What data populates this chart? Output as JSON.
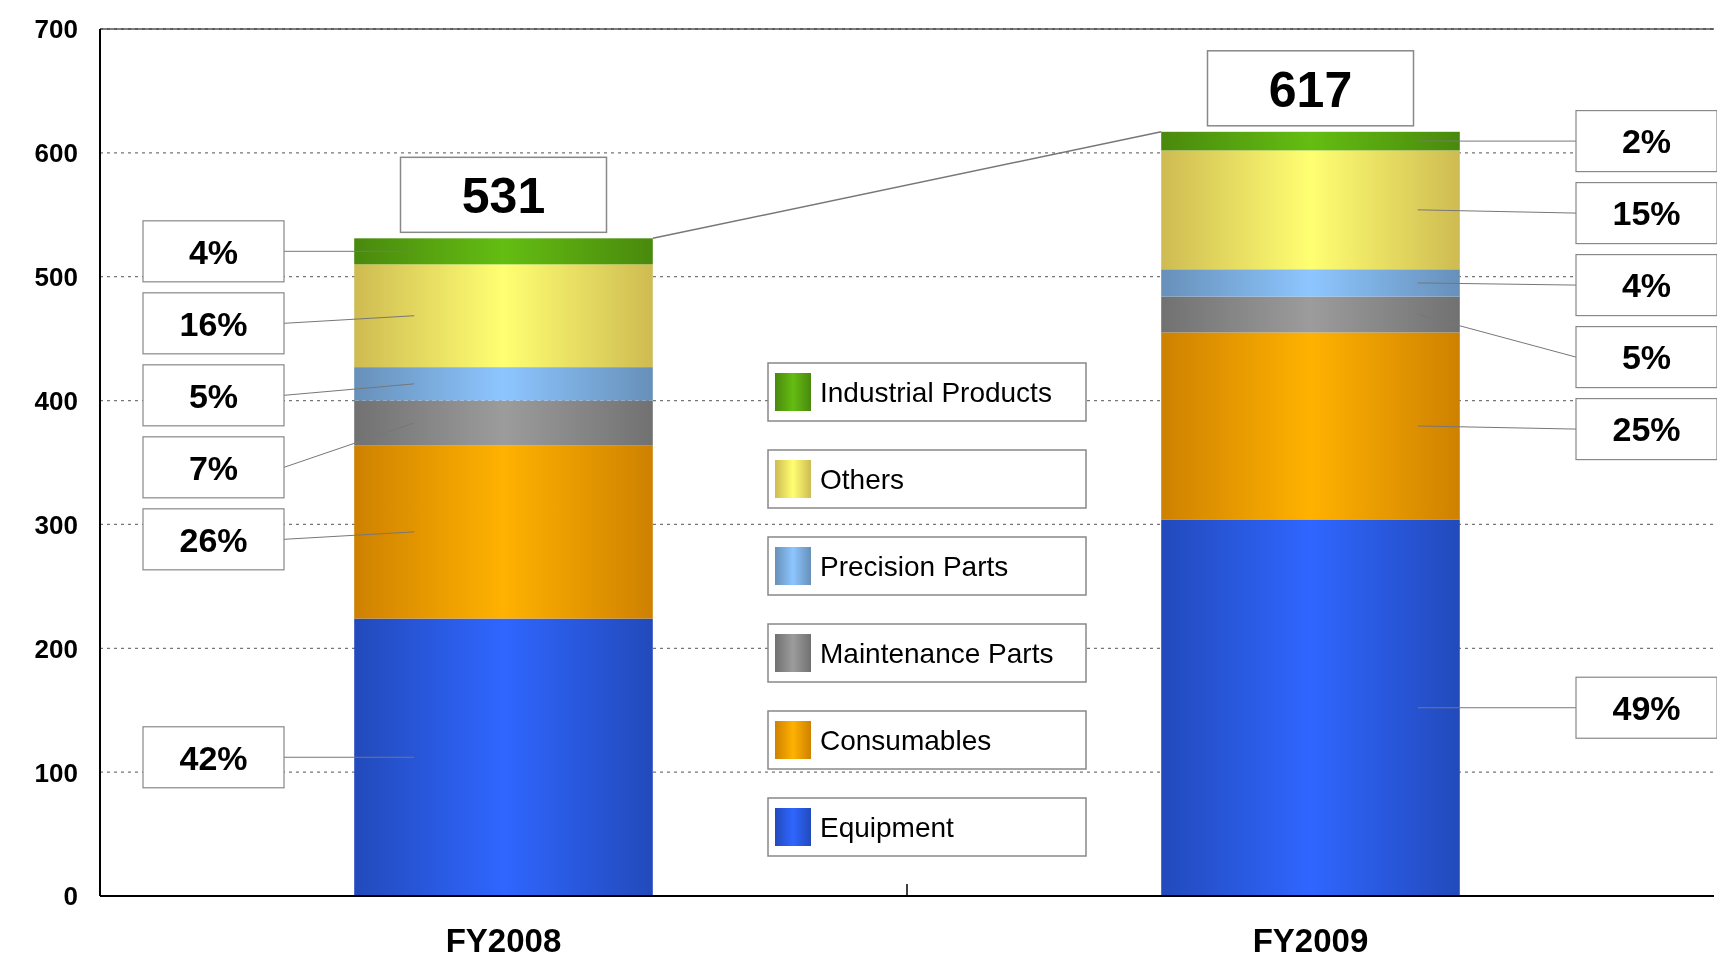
{
  "chart_data": {
    "type": "bar",
    "stacked": true,
    "categories": [
      "FY2008",
      "FY2009"
    ],
    "series": [
      {
        "name": "Equipment",
        "color": "#2a5ce8",
        "values": [
          224,
          304
        ]
      },
      {
        "name": "Consumables",
        "color": "#ffa000",
        "values": [
          140,
          151
        ]
      },
      {
        "name": "Maintenance Parts",
        "color": "#8c8c8c",
        "values": [
          36,
          29
        ]
      },
      {
        "name": "Precision Parts",
        "color": "#7fb2e5",
        "values": [
          27,
          22
        ]
      },
      {
        "name": "Others",
        "color": "#ffe866",
        "values": [
          83,
          96
        ]
      },
      {
        "name": "Industrial Products",
        "color": "#5aaa10",
        "values": [
          21,
          15
        ]
      }
    ],
    "annotations": [
      "42%",
      "26%",
      "7%",
      "5%",
      "16%",
      "4%",
      "49%",
      "25%",
      "5%",
      "4%",
      "15%",
      "2%"
    ],
    "totals": [
      "531",
      "617"
    ],
    "ylim": [
      0,
      700
    ],
    "yticks": [
      0,
      100,
      200,
      300,
      400,
      500,
      600,
      700
    ],
    "grid": "y",
    "legend": "center"
  }
}
